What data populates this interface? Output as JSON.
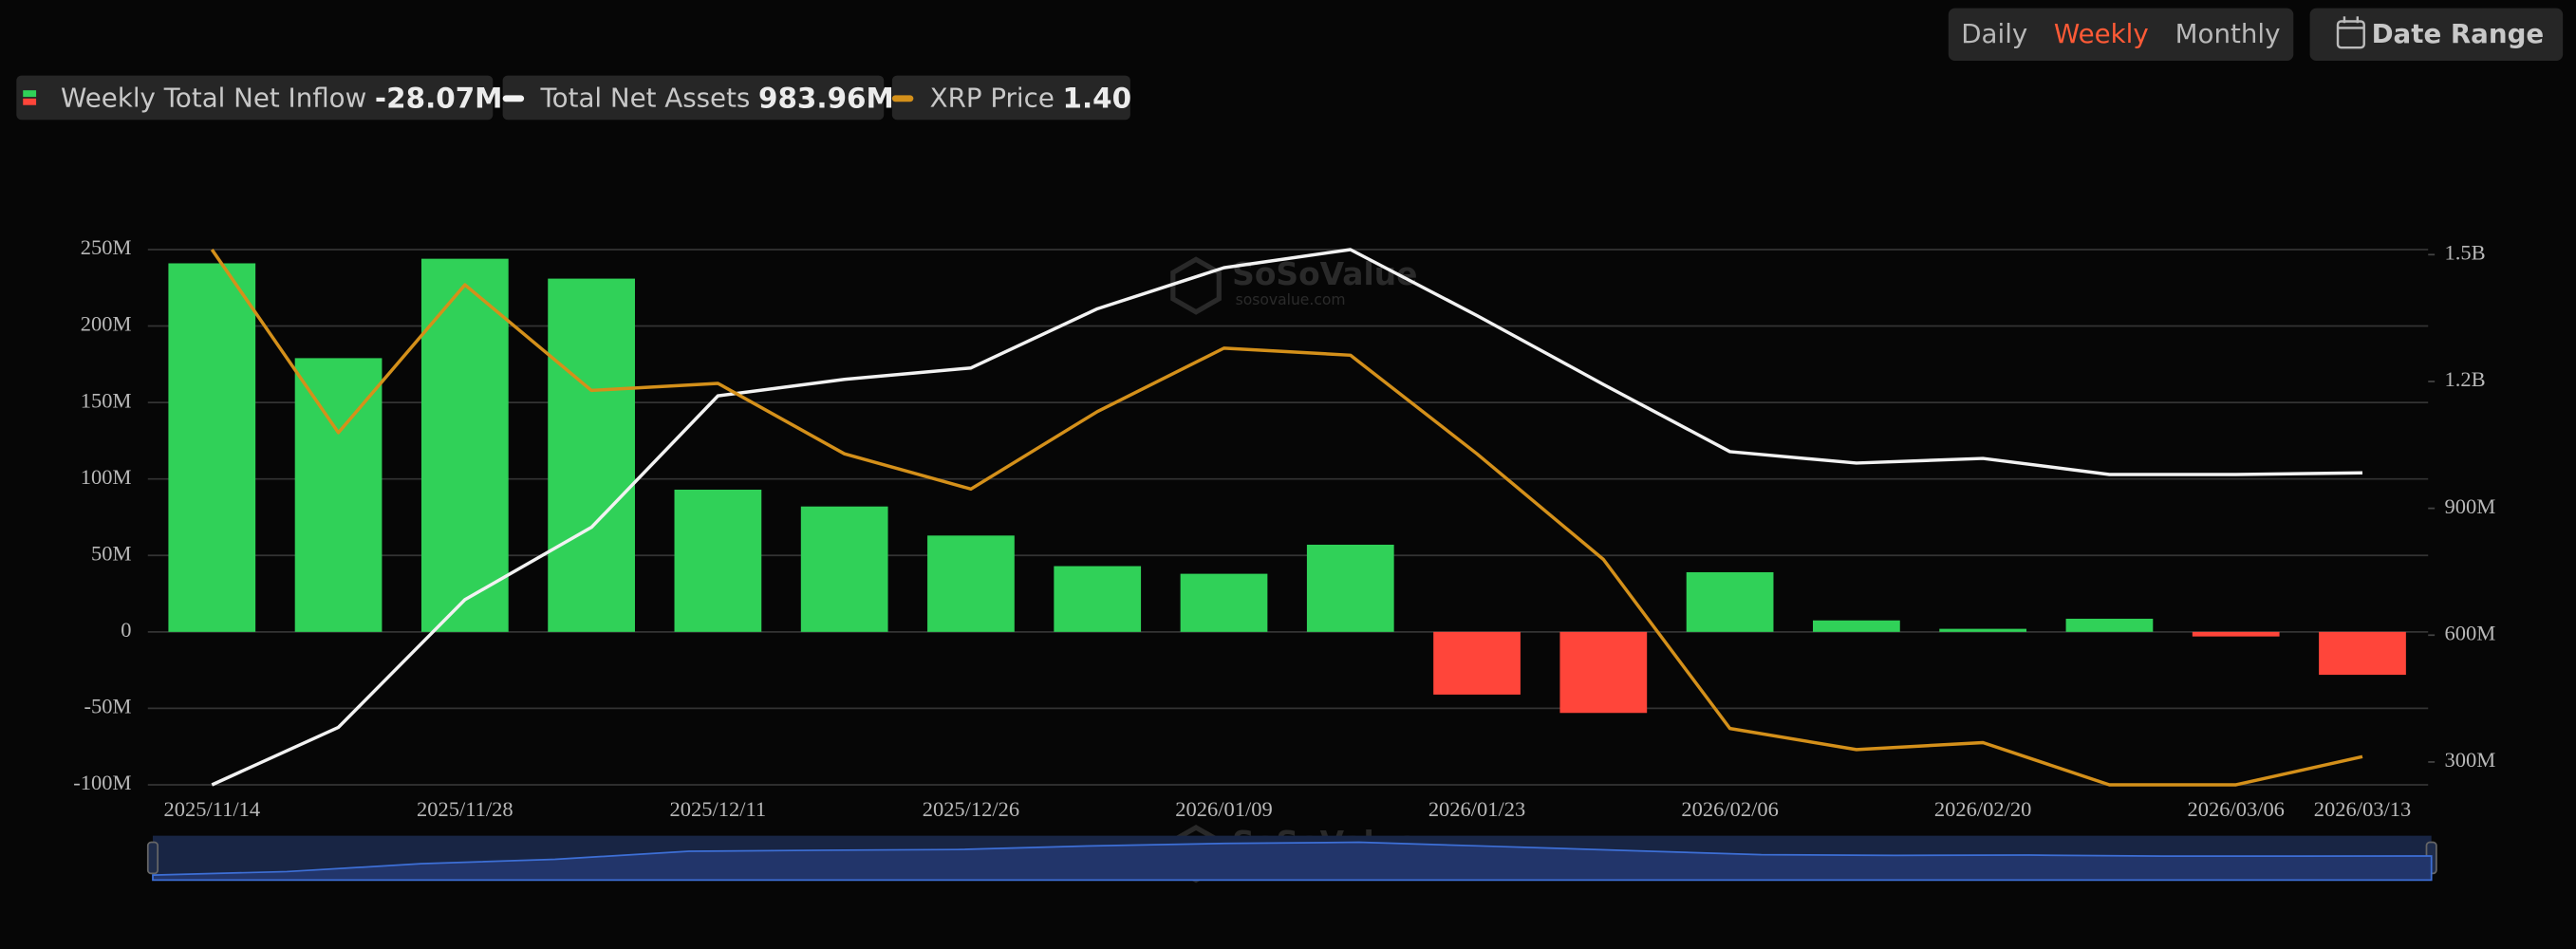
{
  "ui": {
    "periods": [
      "Daily",
      "Weekly",
      "Monthly"
    ],
    "active_period": 1,
    "date_range": "Date Range"
  },
  "chart_data": {
    "type": "bar",
    "categories": [
      "2025/11/14",
      null,
      "2025/11/28",
      null,
      "2025/12/11",
      null,
      "2025/12/26",
      null,
      "2026/01/09",
      null,
      "2026/01/23",
      null,
      "2026/02/06",
      null,
      "2026/02/20",
      null,
      "2026/03/06",
      "2026/03/13"
    ],
    "series": [
      {
        "name": "Weekly Total Net Inflow",
        "type": "bar",
        "color": "#30d158",
        "negative_color": "#ff453a",
        "values": [
          241,
          179,
          244,
          231,
          93,
          82,
          63,
          43,
          38,
          57,
          -41,
          -53,
          39,
          7.5,
          2,
          8.6,
          -3,
          -28.07
        ],
        "value_labels": [
          null,
          null,
          null,
          null,
          null,
          null,
          null,
          null,
          null,
          null,
          null,
          null,
          null,
          null,
          null,
          null,
          null,
          "-28.07M"
        ]
      },
      {
        "name": "Total Net Assets",
        "type": "line",
        "axis": "y2",
        "color": "#f2f2f2",
        "values": [
          246,
          382,
          684,
          855,
          1166,
          1205,
          1232,
          1372,
          1469,
          1512,
          1356,
          1193,
          1034,
          1007,
          1018,
          980,
          980,
          983.96
        ],
        "value_labels": [
          null,
          null,
          null,
          null,
          null,
          null,
          null,
          null,
          null,
          null,
          null,
          null,
          null,
          null,
          null,
          null,
          null,
          "983.96M"
        ]
      },
      {
        "name": "XRP Price",
        "type": "line",
        "axis": "y3",
        "color": "#d4901a",
        "values": [
          2.12,
          1.86,
          2.07,
          1.92,
          1.93,
          1.83,
          1.78,
          1.89,
          1.98,
          1.97,
          1.83,
          1.68,
          1.44,
          1.41,
          1.42,
          1.36,
          1.36,
          1.4
        ],
        "value_labels": [
          null,
          null,
          null,
          null,
          null,
          null,
          null,
          null,
          null,
          null,
          null,
          null,
          null,
          null,
          null,
          null,
          null,
          "1.40"
        ]
      }
    ],
    "ylim": [
      -100,
      250
    ],
    "yticks": [
      {
        "value": -100,
        "label": "-100M"
      },
      {
        "value": -50,
        "label": "-50M"
      },
      0,
      {
        "value": 50,
        "label": "50M"
      },
      {
        "value": 100,
        "label": "100M"
      },
      {
        "value": 150,
        "label": "150M"
      },
      {
        "value": 200,
        "label": "200M"
      },
      {
        "value": 250,
        "label": "250M"
      }
    ],
    "y2lim": [
      246,
      1512
    ],
    "y2ticks": [
      {
        "value": 300,
        "label": "300M"
      },
      {
        "value": 600,
        "label": "600M"
      },
      {
        "value": 900,
        "label": "900M"
      },
      {
        "value": 1200,
        "label": "1.2B"
      },
      {
        "value": 1500,
        "label": "1.5B"
      }
    ],
    "grid": true,
    "watermark": {
      "title": "SoSoValue",
      "subtitle": "sosovalue.com"
    }
  }
}
